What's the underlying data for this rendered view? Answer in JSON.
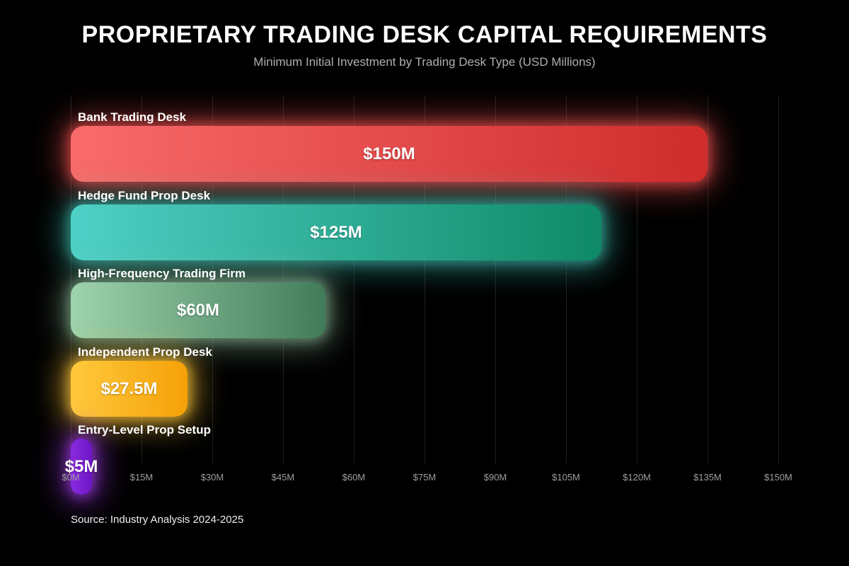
{
  "header": {
    "title": "PROPRIETARY TRADING DESK CAPITAL REQUIREMENTS",
    "subtitle": "Minimum Initial Investment by Trading Desk Type (USD Millions)"
  },
  "footer": {
    "source": "Source: Industry Analysis 2024-2025"
  },
  "chart_data": {
    "type": "bar",
    "orientation": "horizontal",
    "title": "PROPRIETARY TRADING DESK CAPITAL REQUIREMENTS",
    "subtitle": "Minimum Initial Investment by Trading Desk Type (USD Millions)",
    "xlabel": "",
    "ylabel": "",
    "xlim": [
      0,
      150
    ],
    "grid": true,
    "x_ticks": [
      "$0M",
      "$15M",
      "$30M",
      "$45M",
      "$60M",
      "$75M",
      "$90M",
      "$105M",
      "$120M",
      "$135M",
      "$150M"
    ],
    "categories": [
      "Bank Trading Desk",
      "Hedge Fund Prop Desk",
      "High-Frequency Trading Firm",
      "Independent Prop Desk",
      "Entry-Level Prop Setup"
    ],
    "values": [
      150,
      125,
      60,
      27.5,
      5
    ],
    "value_labels": [
      "$150M",
      "$125M",
      "$60M",
      "$27.5M",
      "$5M"
    ],
    "bars": [
      {
        "label": "Bank Trading Desk",
        "value": 150,
        "value_label": "$150M",
        "color_start": "#f96b6b",
        "color_end": "#cf2c2c",
        "glow": "rgba(244,82,82,0.55)"
      },
      {
        "label": "Hedge Fund Prop Desk",
        "value": 125,
        "value_label": "$125M",
        "color_start": "#4fd0c7",
        "color_end": "#0f8a66",
        "glow": "rgba(64,200,185,0.5)"
      },
      {
        "label": "High-Frequency Trading Firm",
        "value": 60,
        "value_label": "$60M",
        "color_start": "#9ed3ad",
        "color_end": "#417c5a",
        "glow": "rgba(158,211,173,0.45)"
      },
      {
        "label": "Independent Prop Desk",
        "value": 27.5,
        "value_label": "$27.5M",
        "color_start": "#ffc93c",
        "color_end": "#f5a108",
        "glow": "rgba(255,200,60,0.6)"
      },
      {
        "label": "Entry-Level Prop Setup",
        "value": 5,
        "value_label": "$5M",
        "color_start": "#8a2be2",
        "color_end": "#6d15c4",
        "glow": "rgba(160,60,230,0.6)"
      }
    ]
  }
}
